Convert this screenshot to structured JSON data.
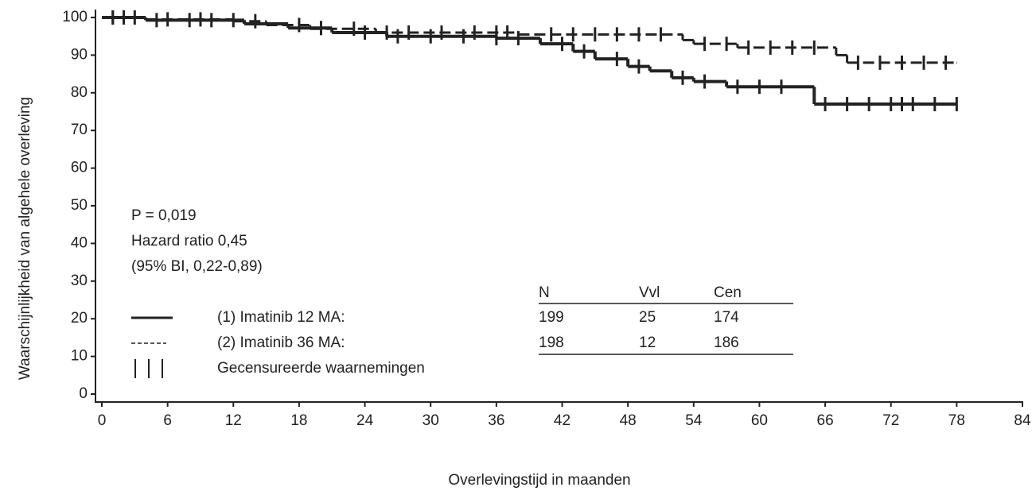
{
  "chart_data": {
    "type": "line",
    "step": true,
    "x_label": "Overlevingstijd in maanden",
    "y_label": "Waarschijnlijkheid van algehele overleving",
    "xlim": [
      0,
      84
    ],
    "ylim": [
      0,
      100
    ],
    "xticks": [
      0,
      6,
      12,
      18,
      24,
      30,
      36,
      42,
      48,
      54,
      60,
      66,
      72,
      78,
      84
    ],
    "yticks": [
      0,
      10,
      20,
      30,
      40,
      50,
      60,
      70,
      80,
      90,
      100
    ],
    "annotations": [
      "P = 0,019",
      "Hazard ratio 0,45",
      "(95% BI, 0,22-0,89)"
    ],
    "censored_label": "Gecensureerde waarnemingen",
    "series": [
      {
        "name": "(1) Imatinib 12 MA:",
        "color": "#222222",
        "dash": false,
        "x": [
          0,
          4,
          13,
          17,
          21,
          26,
          36,
          40,
          43,
          45,
          48,
          50,
          52,
          54,
          57,
          65,
          78
        ],
        "values": [
          100,
          99.3,
          98.3,
          97.2,
          96,
          95,
          94.5,
          93,
          91,
          89,
          87,
          85.8,
          84,
          83,
          81.6,
          77,
          77
        ],
        "censored": [
          1,
          3,
          5,
          8,
          10,
          12,
          20,
          24,
          27,
          30,
          33,
          36,
          38,
          42,
          44,
          47,
          49,
          53,
          55,
          58,
          60,
          62,
          66,
          68,
          70,
          72,
          73,
          74,
          76,
          78
        ]
      },
      {
        "name": "(2) Imatinib 36 MA:",
        "color": "#222222",
        "dash": true,
        "x": [
          0,
          4,
          12,
          15,
          19,
          25,
          38,
          53,
          54,
          58,
          67,
          68,
          78
        ],
        "values": [
          100,
          99.5,
          99,
          98,
          97,
          96,
          95.5,
          94,
          93,
          92,
          90,
          88,
          88
        ],
        "censored": [
          1,
          2,
          6,
          9,
          14,
          18,
          23,
          26,
          28,
          31,
          34,
          36,
          37,
          41,
          43,
          45,
          47,
          49,
          51,
          55,
          57,
          59,
          61,
          63,
          65,
          69,
          71,
          73,
          75,
          77
        ]
      }
    ],
    "table": {
      "columns": [
        "N",
        "Vvl",
        "Cen"
      ],
      "rows": [
        [
          199,
          25,
          174
        ],
        [
          198,
          12,
          186
        ]
      ]
    }
  }
}
